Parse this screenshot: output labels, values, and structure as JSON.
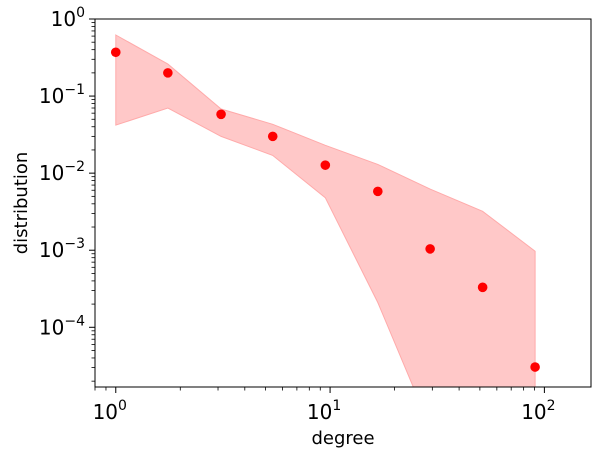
{
  "chart_data": {
    "type": "scatter",
    "title": "",
    "xlabel": "degree",
    "ylabel": "distribution",
    "xscale": "log",
    "yscale": "log",
    "xlim": [
      0.8,
      165
    ],
    "ylim": [
      1.68e-05,
      1.0
    ],
    "x_ticks": [
      {
        "value": 1,
        "base": "10",
        "exp": "0"
      },
      {
        "value": 10,
        "base": "10",
        "exp": "1"
      },
      {
        "value": 100,
        "base": "10",
        "exp": "2"
      }
    ],
    "y_ticks": [
      {
        "value": 0.0001,
        "base": "10",
        "exp": "−4"
      },
      {
        "value": 0.001,
        "base": "10",
        "exp": "−3"
      },
      {
        "value": 0.01,
        "base": "10",
        "exp": "−2"
      },
      {
        "value": 0.1,
        "base": "10",
        "exp": "−1"
      },
      {
        "value": 1,
        "base": "10",
        "exp": "0"
      }
    ],
    "grid": false,
    "legend": "none",
    "series": [
      {
        "x": [
          1.0,
          1.75,
          3.1,
          5.4,
          9.5,
          16.7,
          29.3,
          51.5,
          90.5
        ],
        "y": [
          0.37,
          0.2,
          0.058,
          0.03,
          0.0127,
          0.0058,
          0.00104,
          0.00033,
          3.05e-05
        ],
        "color": "#ff0000"
      }
    ],
    "band": {
      "x": [
        1.0,
        1.75,
        3.1,
        5.4,
        9.5,
        16.7,
        29.3,
        51.5,
        90.5
      ],
      "upper": [
        0.62,
        0.26,
        0.068,
        0.043,
        0.023,
        0.013,
        0.0062,
        0.0032,
        0.00097
      ],
      "lower": [
        0.042,
        0.07,
        0.03,
        0.017,
        0.0048,
        0.00021,
        null,
        null,
        null
      ],
      "color": "#ffc8c8",
      "edge_color": "#ffaaaa"
    }
  }
}
